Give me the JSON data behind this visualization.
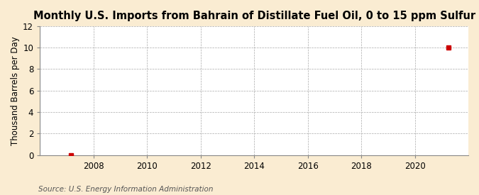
{
  "title": "Monthly U.S. Imports from Bahrain of Distillate Fuel Oil, 0 to 15 ppm Sulfur",
  "ylabel": "Thousand Barrels per Day",
  "source": "Source: U.S. Energy Information Administration",
  "background_color": "#faecd2",
  "plot_background": "#ffffff",
  "grid_color": "#aaaaaa",
  "point1_x": 2007.17,
  "point1_y": 0.0,
  "point2_x": 2021.25,
  "point2_y": 10.0,
  "marker_color": "#cc0000",
  "xlim": [
    2006.0,
    2022.0
  ],
  "ylim": [
    0,
    12
  ],
  "yticks": [
    0,
    2,
    4,
    6,
    8,
    10,
    12
  ],
  "xticks": [
    2008,
    2010,
    2012,
    2014,
    2016,
    2018,
    2020
  ],
  "title_fontsize": 10.5,
  "ylabel_fontsize": 8.5,
  "source_fontsize": 7.5,
  "tick_fontsize": 8.5
}
